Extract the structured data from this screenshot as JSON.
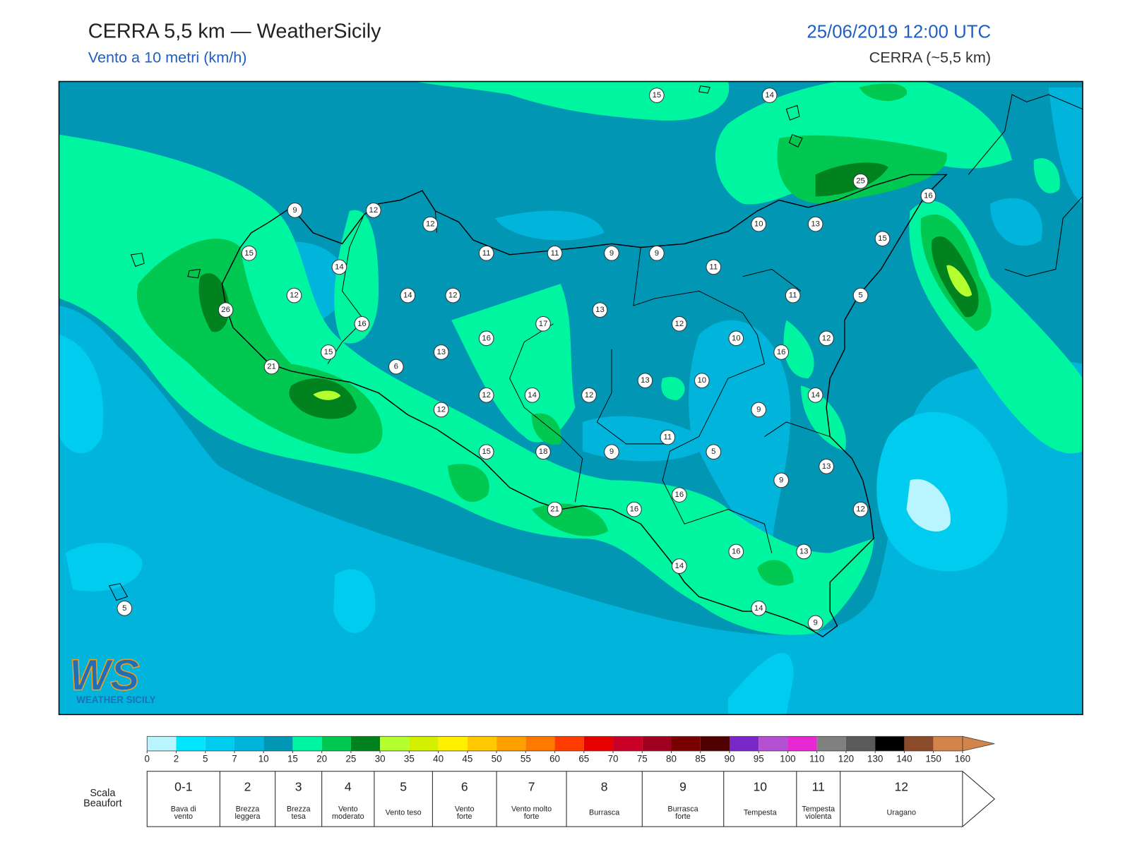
{
  "header": {
    "title": "CERRA 5,5 km — WeatherSicily",
    "subtitle": "Vento a 10 metri (km/h)",
    "datetime": "25/06/2019 12:00 UTC",
    "model": "CERRA (~5,5 km)"
  },
  "stations": [
    15,
    14,
    25,
    16,
    9,
    12,
    12,
    10,
    13,
    15,
    15,
    11,
    11,
    9,
    9,
    11,
    14,
    12,
    14,
    12,
    11,
    5,
    26,
    13,
    16,
    17,
    12,
    16,
    10,
    12,
    15,
    13,
    16,
    6,
    21,
    13,
    10,
    12,
    14,
    12,
    14,
    12,
    9,
    11,
    15,
    18,
    9,
    5,
    13,
    9,
    16,
    12,
    21,
    16,
    16,
    13,
    14,
    5,
    14,
    9
  ],
  "logo": {
    "letters": "WS",
    "text": "WEATHER SICILY"
  },
  "colorbar": {
    "ticks": [
      0,
      2,
      5,
      7,
      10,
      15,
      20,
      25,
      30,
      35,
      40,
      45,
      50,
      55,
      60,
      65,
      70,
      75,
      80,
      85,
      90,
      95,
      100,
      110,
      120,
      130,
      140,
      150,
      160
    ],
    "colors": [
      "#b8f5ff",
      "#00e6ff",
      "#00ccf0",
      "#00b4dc",
      "#0096b4",
      "#00f5a0",
      "#00c850",
      "#00821e",
      "#b4ff30",
      "#d2f000",
      "#fff000",
      "#ffc800",
      "#ffa000",
      "#ff7800",
      "#ff3c00",
      "#e60000",
      "#c80028",
      "#a0001e",
      "#780000",
      "#500000",
      "#7828c8",
      "#b450d2",
      "#e628d2",
      "#808080",
      "#5a5a5a",
      "#000000",
      "#8b4a2a",
      "#d2844a"
    ]
  },
  "beaufort": {
    "title": [
      "Scala",
      "Beaufort"
    ],
    "classes": [
      {
        "force": "0-1",
        "label": [
          "Bava di",
          "vento"
        ]
      },
      {
        "force": "2",
        "label": [
          "Brezza",
          "leggera"
        ]
      },
      {
        "force": "3",
        "label": [
          "Brezza",
          "tesa"
        ]
      },
      {
        "force": "4",
        "label": [
          "Vento",
          "moderato"
        ]
      },
      {
        "force": "5",
        "label": [
          "Vento teso"
        ]
      },
      {
        "force": "6",
        "label": [
          "Vento",
          "forte"
        ]
      },
      {
        "force": "7",
        "label": [
          "Vento molto",
          "forte"
        ]
      },
      {
        "force": "8",
        "label": [
          "Burrasca"
        ]
      },
      {
        "force": "9",
        "label": [
          "Burrasca",
          "forte"
        ]
      },
      {
        "force": "10",
        "label": [
          "Tempesta"
        ]
      },
      {
        "force": "11",
        "label": [
          "Tempesta",
          "violenta"
        ]
      },
      {
        "force": "12",
        "label": [
          "Uragano"
        ]
      }
    ]
  }
}
